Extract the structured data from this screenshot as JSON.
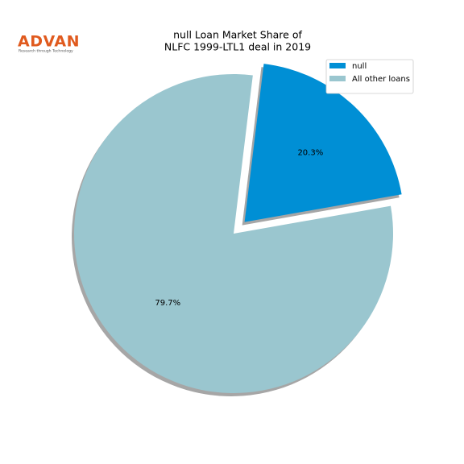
{
  "logo": {
    "name": "ADVAN",
    "tagline": "Research through Technology"
  },
  "chart_data": {
    "type": "pie",
    "title": [
      "null Loan Market Share of",
      "NLFC 1999-LTL1 deal in 2019"
    ],
    "categories": [
      "null",
      "All other loans"
    ],
    "values": [
      20.3,
      79.7
    ],
    "value_labels": [
      "20.3%",
      "79.7%"
    ],
    "colors": [
      "#008fd5",
      "#9ac6cf"
    ],
    "explode": [
      0.1,
      0
    ],
    "startangle": 10,
    "shadow": true,
    "legend": "upper right"
  }
}
